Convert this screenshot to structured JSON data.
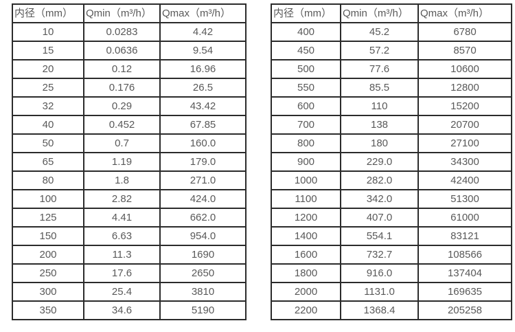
{
  "colors": {
    "border": "#2b2b2b",
    "text": "#595959",
    "background": "#ffffff"
  },
  "tables": [
    {
      "name": "flow-rates-small-diameters",
      "headers": [
        "内径（mm）",
        "Qmin（m³/h）",
        "Qmax（m³/h）"
      ],
      "rows": [
        [
          "10",
          "0.0283",
          "4.42"
        ],
        [
          "15",
          "0.0636",
          "9.54"
        ],
        [
          "20",
          "0.12",
          "16.96"
        ],
        [
          "25",
          "0.176",
          "26.5"
        ],
        [
          "32",
          "0.29",
          "43.42"
        ],
        [
          "40",
          "0.452",
          "67.85"
        ],
        [
          "50",
          "0.7",
          "160.0"
        ],
        [
          "65",
          "1.19",
          "179.0"
        ],
        [
          "80",
          "1.8",
          "271.0"
        ],
        [
          "100",
          "2.82",
          "424.0"
        ],
        [
          "125",
          "4.41",
          "662.0"
        ],
        [
          "150",
          "6.63",
          "954.0"
        ],
        [
          "200",
          "11.3",
          "1690"
        ],
        [
          "250",
          "17.6",
          "2650"
        ],
        [
          "300",
          "25.4",
          "3810"
        ],
        [
          "350",
          "34.6",
          "5190"
        ]
      ]
    },
    {
      "name": "flow-rates-large-diameters",
      "headers": [
        "内径（mm）",
        "Qmin（m³/h）",
        "Qmax（m³/h）"
      ],
      "rows": [
        [
          "400",
          "45.2",
          "6780"
        ],
        [
          "450",
          "57.2",
          "8570"
        ],
        [
          "500",
          "77.6",
          "10600"
        ],
        [
          "550",
          "85.5",
          "12800"
        ],
        [
          "600",
          "110",
          "15200"
        ],
        [
          "700",
          "138",
          "20700"
        ],
        [
          "800",
          "180",
          "27100"
        ],
        [
          "900",
          "229.0",
          "34300"
        ],
        [
          "1000",
          "282.0",
          "42400"
        ],
        [
          "1100",
          "342.0",
          "51300"
        ],
        [
          "1200",
          "407.0",
          "61000"
        ],
        [
          "1400",
          "554.1",
          "83121"
        ],
        [
          "1600",
          "732.7",
          "108566"
        ],
        [
          "1800",
          "916.0",
          "137404"
        ],
        [
          "2000",
          "1131.0",
          "169635"
        ],
        [
          "2200",
          "1368.4",
          "205258"
        ]
      ]
    }
  ]
}
